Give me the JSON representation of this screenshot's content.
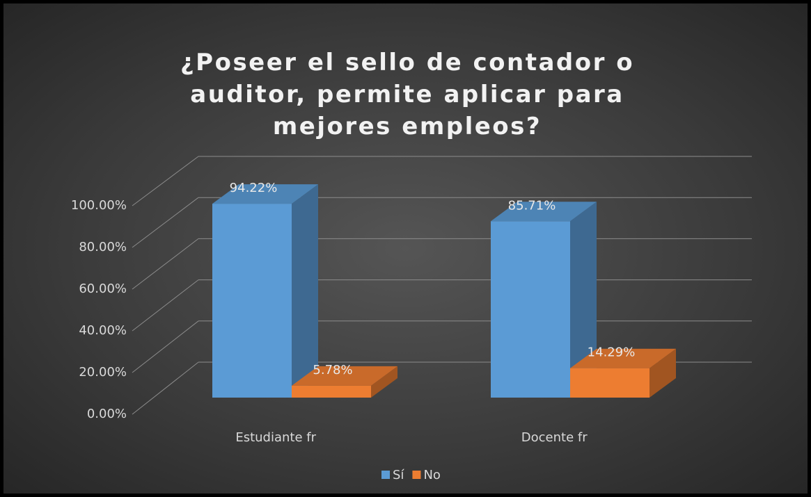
{
  "chart_data": {
    "type": "bar3d",
    "title": "¿Poseer el sello de contador o auditor, permite aplicar para mejores empleos?",
    "categories": [
      "Estudiante fr",
      "Docente fr"
    ],
    "series": [
      {
        "name": "Sí",
        "color": "#5b9bd5",
        "values": [
          94.22,
          85.71
        ],
        "value_labels": [
          "94.22%",
          "85.71%"
        ]
      },
      {
        "name": "No",
        "color": "#ed7d31",
        "values": [
          5.78,
          14.29
        ],
        "value_labels": [
          "5.78%",
          "14.29%"
        ]
      }
    ],
    "ylim": [
      0,
      100
    ],
    "yticks": [
      {
        "value": 0,
        "label": "0.00%"
      },
      {
        "value": 20,
        "label": "20.00%"
      },
      {
        "value": 40,
        "label": "40.00%"
      },
      {
        "value": 60,
        "label": "60.00%"
      },
      {
        "value": 80,
        "label": "80.00%"
      },
      {
        "value": 100,
        "label": "100.00%"
      }
    ],
    "grid": true,
    "legend": "bottom"
  }
}
